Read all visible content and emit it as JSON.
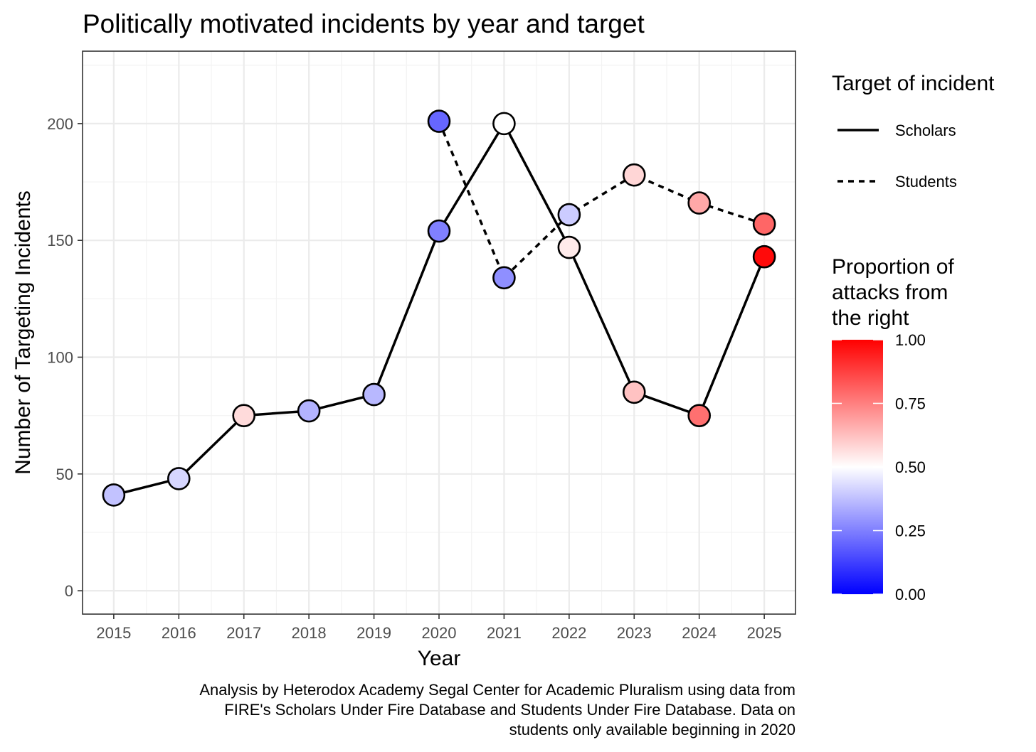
{
  "chart_data": {
    "type": "line",
    "title": "Politically motivated incidents by year and target",
    "xlabel": "Year",
    "ylabel": "Number of Targeting Incidents",
    "categories": [
      "2015",
      "2016",
      "2017",
      "2018",
      "2019",
      "2020",
      "2021",
      "2022",
      "2023",
      "2024",
      "2025"
    ],
    "ylim": [
      -10,
      231
    ],
    "yticks": [
      0,
      50,
      100,
      150,
      200
    ],
    "ytick_labels": [
      "0",
      "50",
      "100",
      "150",
      "200"
    ],
    "grid": true,
    "series": [
      {
        "name": "Scholars",
        "linetype": "solid",
        "x": [
          2015,
          2016,
          2017,
          2018,
          2019,
          2020,
          2021,
          2022,
          2023,
          2024,
          2025
        ],
        "values": [
          41,
          48,
          75,
          77,
          84,
          154,
          200,
          147,
          85,
          75,
          143
        ],
        "proportion_right": [
          0.38,
          0.42,
          0.57,
          0.35,
          0.36,
          0.25,
          0.5,
          0.54,
          0.62,
          0.78,
          0.98
        ]
      },
      {
        "name": "Students",
        "linetype": "dashed",
        "x": [
          2020,
          2021,
          2022,
          2023,
          2024,
          2025
        ],
        "values": [
          201,
          134,
          161,
          178,
          166,
          157
        ],
        "proportion_right": [
          0.2,
          0.28,
          0.4,
          0.58,
          0.67,
          0.8
        ]
      }
    ],
    "legend_linetype": {
      "title": "Target of incident",
      "entries": [
        "Scholars",
        "Students"
      ]
    },
    "legend_color": {
      "title_lines": [
        "Proportion of",
        "attacks from",
        "the right"
      ],
      "tick_labels": [
        "1.00",
        "0.75",
        "0.50",
        "0.25",
        "0.00"
      ],
      "tick_values": [
        1.0,
        0.75,
        0.5,
        0.25,
        0.0
      ],
      "low_color": "#0000ff",
      "mid_color": "#ffffff",
      "high_color": "#ff0000"
    },
    "caption_lines": [
      "Analysis by Heterodox Academy Segal Center for Academic Pluralism using data from",
      "FIRE's Scholars Under Fire Database and Students Under Fire Database. Data on",
      "students only available beginning in 2020"
    ]
  }
}
